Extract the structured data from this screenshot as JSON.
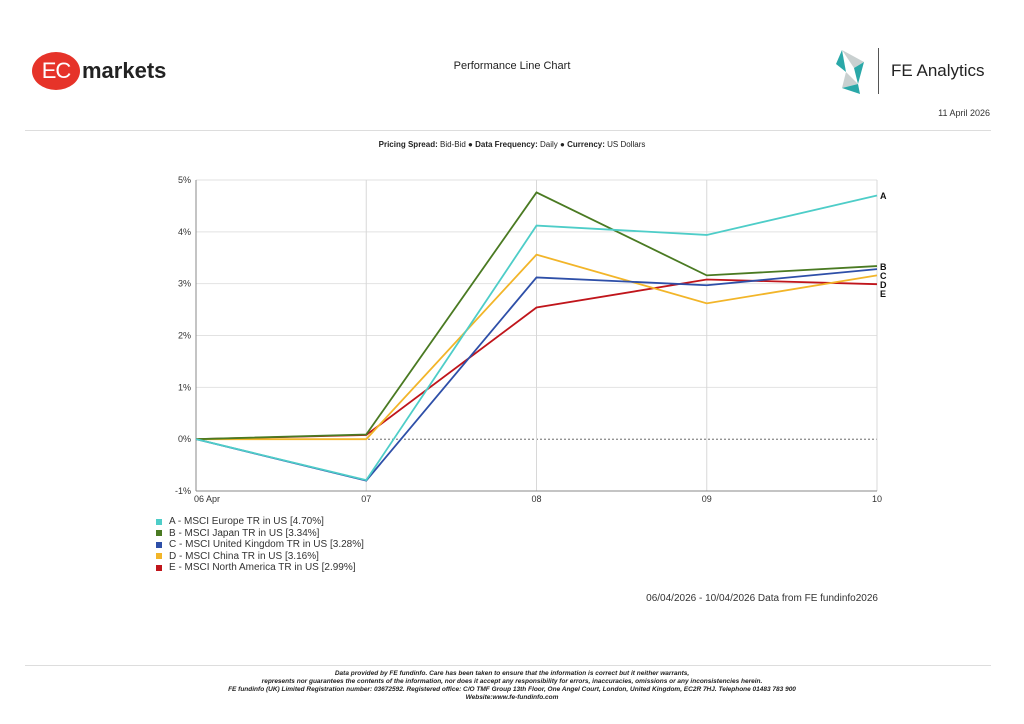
{
  "header": {
    "brand_logo": "EC markets",
    "brand_logo_parts": [
      "EC",
      "markets"
    ],
    "title": "Performance Line Chart",
    "fe_logo": "FE Analytics",
    "date": "11 April 2026"
  },
  "subtitle": {
    "pricing_label": "Pricing Spread:",
    "pricing_value": "Bid-Bid",
    "frequency_label": "Data Frequency:",
    "frequency_value": "Daily",
    "currency_label": "Currency:",
    "currency_value": "US Dollars",
    "separator": "●"
  },
  "chart_data": {
    "type": "line",
    "title": "",
    "xlabel": "",
    "ylabel": "",
    "categories": [
      "06 Apr",
      "07",
      "08",
      "09",
      "10"
    ],
    "yticks": [
      "-1%",
      "0%",
      "1%",
      "2%",
      "3%",
      "4%",
      "5%"
    ],
    "ylim": [
      -1,
      5
    ],
    "grid": true,
    "legend_placement": "bottom-left",
    "series": [
      {
        "key": "A",
        "name": "A - MSCI Europe TR in US [4.70%]",
        "color": "#4ecdc8",
        "values": [
          0,
          -0.79,
          4.12,
          3.94,
          4.7
        ]
      },
      {
        "key": "B",
        "name": "B - MSCI Japan TR in US [3.34%]",
        "color": "#4a7a22",
        "values": [
          0,
          0.09,
          4.76,
          3.16,
          3.34
        ]
      },
      {
        "key": "C",
        "name": "C - MSCI United Kingdom TR in US [3.28%]",
        "color": "#2e4fa8",
        "values": [
          0,
          -0.8,
          3.12,
          2.97,
          3.28
        ]
      },
      {
        "key": "D",
        "name": "D - MSCI China TR in US [3.16%]",
        "color": "#f2b529",
        "values": [
          0,
          0.0,
          3.56,
          2.62,
          3.16
        ]
      },
      {
        "key": "E",
        "name": "E - MSCI North America TR in US [2.99%]",
        "color": "#c0151b",
        "values": [
          0,
          0.08,
          2.54,
          3.08,
          2.99
        ]
      }
    ]
  },
  "range_note": "06/04/2026 - 10/04/2026 Data from FE fundinfo2026",
  "footer": {
    "line1": "Data provided by FE fundinfo. Care has been taken to ensure that the information is correct but it neither warrants,",
    "line2": "represents nor guarantees the contents of the information, nor does it accept any responsibility for errors, inaccuracies, omissions or any inconsistencies herein.",
    "line3": "FE fundinfo (UK) Limited Registration number: 03672592. Registered office: C/O TMF Group 13th Floor, One Angel Court, London, United Kingdom, EC2R 7HJ. Telephone 01483 783 900",
    "line4": "Website:www.fe-fundinfo.com"
  }
}
